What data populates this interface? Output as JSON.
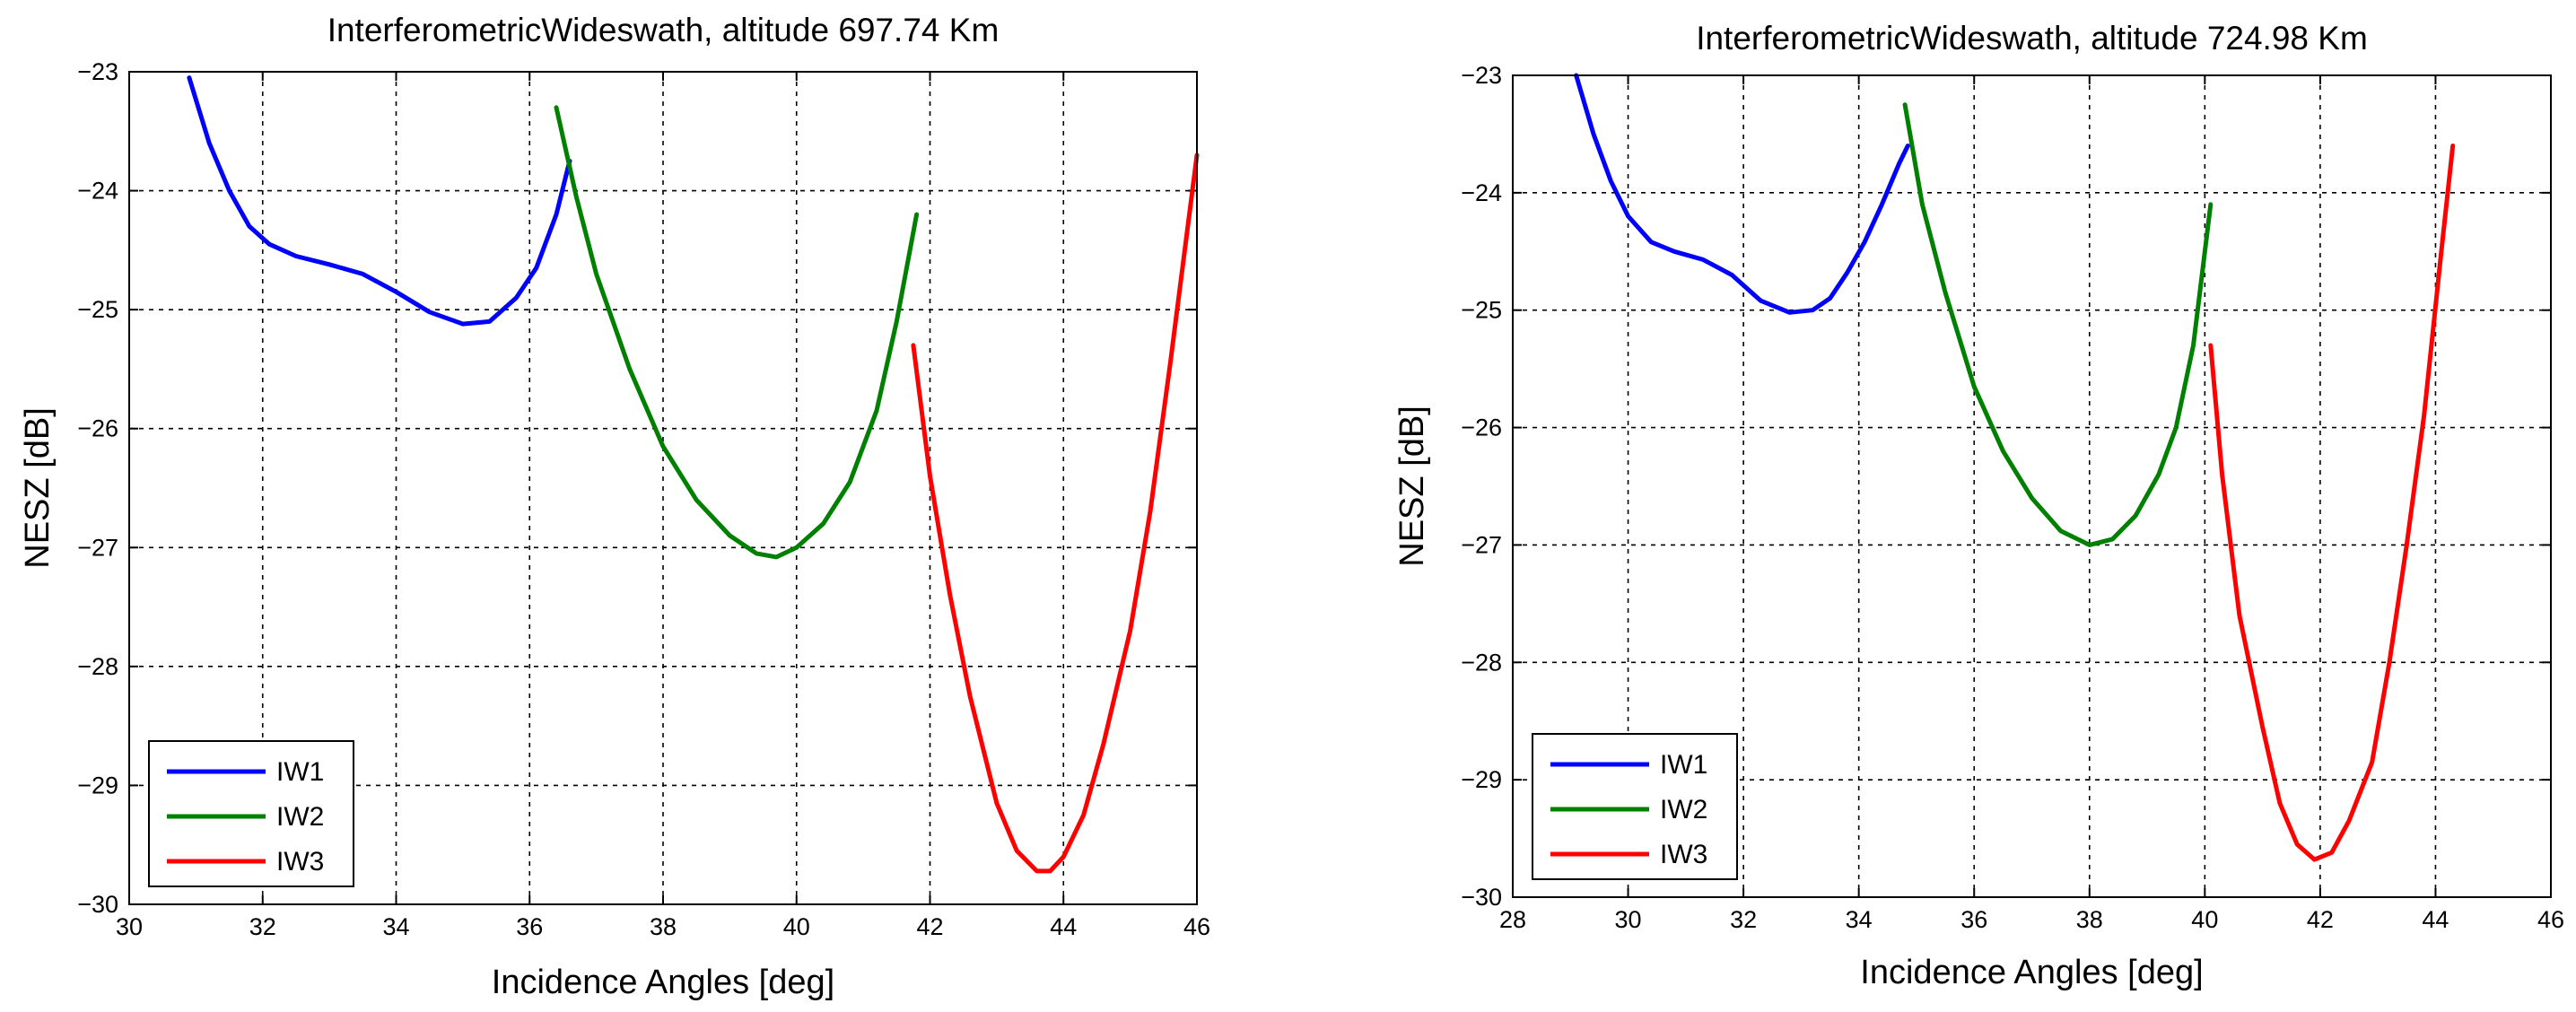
{
  "chart_data": [
    {
      "type": "line",
      "title": "InterferometricWideswath, altitude 697.74 Km",
      "xlabel": "Incidence Angles [deg]",
      "ylabel": "NESZ [dB]",
      "xlim": [
        30,
        46
      ],
      "ylim": [
        -30,
        -23
      ],
      "xticks": [
        30,
        32,
        34,
        36,
        38,
        40,
        42,
        44,
        46
      ],
      "yticks": [
        -23,
        -24,
        -25,
        -26,
        -27,
        -28,
        -29,
        -30
      ],
      "xtick_labels": [
        "30",
        "32",
        "34",
        "36",
        "38",
        "40",
        "42",
        "44",
        "46"
      ],
      "ytick_labels": [
        "−23",
        "−24",
        "−25",
        "−26",
        "−27",
        "−28",
        "−29",
        "−30"
      ],
      "grid": true,
      "legend_position": "bottom-left",
      "series": [
        {
          "name": "IW1",
          "color": "#0000ff",
          "x": [
            30.9,
            31.2,
            31.5,
            31.8,
            32.1,
            32.5,
            33.0,
            33.5,
            34.0,
            34.5,
            35.0,
            35.4,
            35.8,
            36.1,
            36.4,
            36.6
          ],
          "y": [
            -23.05,
            -23.6,
            -24.0,
            -24.3,
            -24.45,
            -24.55,
            -24.62,
            -24.7,
            -24.85,
            -25.02,
            -25.12,
            -25.1,
            -24.9,
            -24.65,
            -24.2,
            -23.75
          ]
        },
        {
          "name": "IW2",
          "color": "#008000",
          "x": [
            36.4,
            36.7,
            37.0,
            37.5,
            38.0,
            38.5,
            39.0,
            39.4,
            39.7,
            40.0,
            40.4,
            40.8,
            41.2,
            41.5,
            41.8
          ],
          "y": [
            -23.3,
            -24.05,
            -24.7,
            -25.5,
            -26.15,
            -26.6,
            -26.9,
            -27.05,
            -27.08,
            -27.0,
            -26.8,
            -26.45,
            -25.85,
            -25.1,
            -24.2
          ]
        },
        {
          "name": "IW3",
          "color": "#ff0000",
          "x": [
            41.75,
            42.0,
            42.3,
            42.6,
            43.0,
            43.3,
            43.6,
            43.8,
            44.0,
            44.3,
            44.6,
            45.0,
            45.3,
            45.6,
            46.0
          ],
          "y": [
            -25.3,
            -26.4,
            -27.4,
            -28.25,
            -29.15,
            -29.55,
            -29.72,
            -29.72,
            -29.6,
            -29.25,
            -28.65,
            -27.7,
            -26.7,
            -25.45,
            -23.7
          ]
        }
      ]
    },
    {
      "type": "line",
      "title": "InterferometricWideswath, altitude 724.98 Km",
      "xlabel": "Incidence Angles [deg]",
      "ylabel": "NESZ [dB]",
      "xlim": [
        28,
        46
      ],
      "ylim": [
        -30,
        -23
      ],
      "xticks": [
        28,
        30,
        32,
        34,
        36,
        38,
        40,
        42,
        44,
        46
      ],
      "yticks": [
        -23,
        -24,
        -25,
        -26,
        -27,
        -28,
        -29,
        -30
      ],
      "xtick_labels": [
        "28",
        "30",
        "32",
        "34",
        "36",
        "38",
        "40",
        "42",
        "44",
        "46"
      ],
      "ytick_labels": [
        "−23",
        "−24",
        "−25",
        "−26",
        "−27",
        "−28",
        "−29",
        "−30"
      ],
      "grid": true,
      "legend_position": "bottom-left",
      "series": [
        {
          "name": "IW1",
          "color": "#0000ff",
          "x": [
            29.1,
            29.4,
            29.7,
            30.0,
            30.4,
            30.8,
            31.3,
            31.8,
            32.3,
            32.8,
            33.2,
            33.5,
            33.8,
            34.1,
            34.4,
            34.7,
            34.85
          ],
          "y": [
            -23.0,
            -23.5,
            -23.9,
            -24.2,
            -24.42,
            -24.5,
            -24.57,
            -24.7,
            -24.92,
            -25.02,
            -25.0,
            -24.9,
            -24.68,
            -24.42,
            -24.1,
            -23.75,
            -23.6
          ]
        },
        {
          "name": "IW2",
          "color": "#008000",
          "x": [
            34.8,
            35.1,
            35.5,
            36.0,
            36.5,
            37.0,
            37.5,
            38.0,
            38.4,
            38.8,
            39.2,
            39.5,
            39.8,
            40.1
          ],
          "y": [
            -23.25,
            -24.1,
            -24.85,
            -25.65,
            -26.2,
            -26.6,
            -26.88,
            -27.0,
            -26.95,
            -26.75,
            -26.4,
            -26.0,
            -25.3,
            -24.1
          ]
        },
        {
          "name": "IW3",
          "color": "#ff0000",
          "x": [
            40.1,
            40.3,
            40.6,
            41.0,
            41.3,
            41.6,
            41.9,
            42.2,
            42.5,
            42.9,
            43.2,
            43.5,
            43.8,
            44.1,
            44.3
          ],
          "y": [
            -25.3,
            -26.4,
            -27.6,
            -28.55,
            -29.2,
            -29.55,
            -29.68,
            -29.62,
            -29.35,
            -28.85,
            -28.0,
            -27.0,
            -25.9,
            -24.5,
            -23.6
          ]
        }
      ]
    }
  ]
}
